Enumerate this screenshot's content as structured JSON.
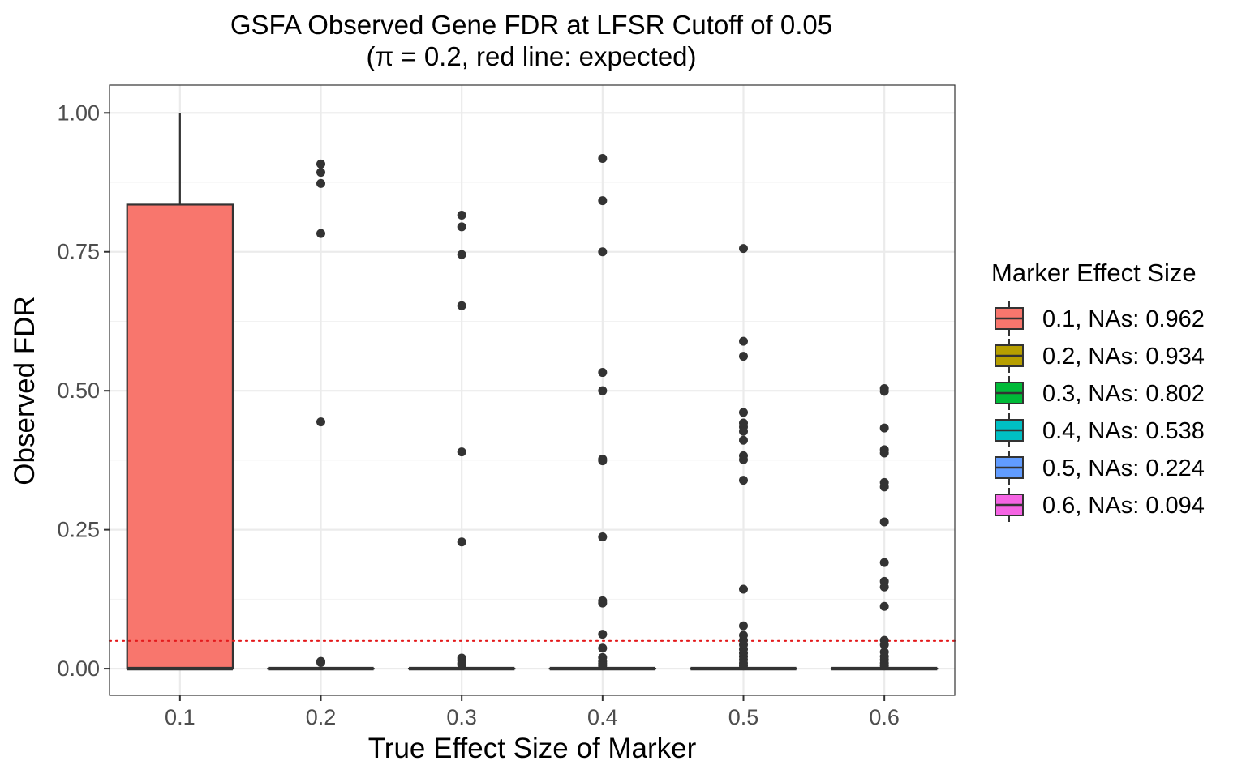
{
  "chart_data": {
    "type": "box",
    "title": "GSFA Observed Gene FDR at LFSR Cutoff of 0.05",
    "subtitle": "(π = 0.2, red line: expected)",
    "xlabel": "True Effect Size of Marker",
    "ylabel": "Observed FDR",
    "categories": [
      "0.1",
      "0.2",
      "0.3",
      "0.4",
      "0.5",
      "0.6"
    ],
    "y_ticks": [
      "0.00",
      "0.25",
      "0.50",
      "0.75",
      "1.00"
    ],
    "y_tick_values": [
      0,
      0.25,
      0.5,
      0.75,
      1.0
    ],
    "ylim": [
      -0.048,
      1.05
    ],
    "grid": true,
    "reference_line": {
      "y": 0.05,
      "color": "#e41a1c",
      "style": "dotted"
    },
    "legend": {
      "title": "Marker Effect Size",
      "placement": "right",
      "entries": [
        "0.1, NAs: 0.962",
        "0.2, NAs: 0.934",
        "0.3, NAs: 0.802",
        "0.4, NAs: 0.538",
        "0.5, NAs: 0.224",
        "0.6, NAs: 0.094"
      ]
    },
    "colors": [
      "#F8766D",
      "#B79F00",
      "#00BA38",
      "#00BFC4",
      "#619CFF",
      "#F564E3"
    ],
    "boxes": [
      {
        "category": "0.1",
        "q1": 0,
        "median": 0,
        "q3": 0.835,
        "whisker_low": 0,
        "whisker_high": 1.0,
        "outliers": []
      },
      {
        "category": "0.2",
        "q1": 0,
        "median": 0,
        "q3": 0,
        "whisker_low": 0,
        "whisker_high": 0,
        "outliers": [
          0.908,
          0.893,
          0.873,
          0.783,
          0.444,
          0.013,
          0.011
        ]
      },
      {
        "category": "0.3",
        "q1": 0,
        "median": 0,
        "q3": 0,
        "whisker_low": 0,
        "whisker_high": 0,
        "outliers": [
          0.816,
          0.795,
          0.745,
          0.653,
          0.39,
          0.228,
          0.019,
          0.015,
          0.01,
          0.007
        ]
      },
      {
        "category": "0.4",
        "q1": 0,
        "median": 0,
        "q3": 0,
        "whisker_low": 0,
        "whisker_high": 0,
        "outliers": [
          0.918,
          0.842,
          0.75,
          0.533,
          0.5,
          0.377,
          0.374,
          0.237,
          0.122,
          0.118,
          0.062,
          0.037,
          0.02,
          0.013,
          0.009,
          0.005
        ]
      },
      {
        "category": "0.5",
        "q1": 0,
        "median": 0,
        "q3": 0,
        "whisker_low": 0,
        "whisker_high": 0,
        "outliers": [
          0.756,
          0.589,
          0.562,
          0.461,
          0.442,
          0.435,
          0.427,
          0.411,
          0.383,
          0.376,
          0.339,
          0.143,
          0.077,
          0.06,
          0.051,
          0.043,
          0.035,
          0.028,
          0.022,
          0.016,
          0.01,
          0.005
        ]
      },
      {
        "category": "0.6",
        "q1": 0,
        "median": 0,
        "q3": 0,
        "whisker_low": 0,
        "whisker_high": 0,
        "outliers": [
          0.504,
          0.499,
          0.433,
          0.394,
          0.388,
          0.335,
          0.327,
          0.264,
          0.191,
          0.157,
          0.147,
          0.112,
          0.051,
          0.043,
          0.03,
          0.022,
          0.016,
          0.01,
          0.005
        ]
      }
    ]
  }
}
